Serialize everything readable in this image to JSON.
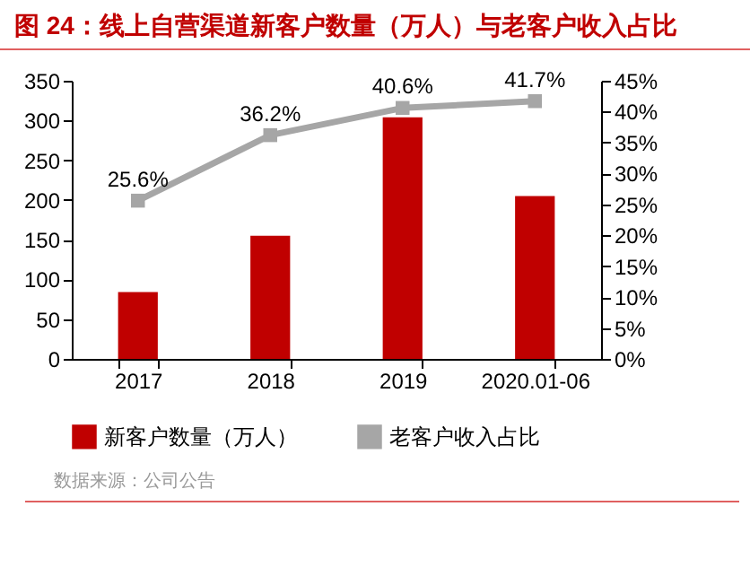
{
  "chart_data": {
    "type": "bar",
    "title": "图 24：线上自营渠道新客户数量（万人）与老客户收入占比",
    "categories": [
      "2017",
      "2018",
      "2019",
      "2020.01-06"
    ],
    "series": [
      {
        "name": "新客户数量（万人）",
        "color": "#c00000",
        "values": [
          84,
          155,
          304,
          205
        ]
      },
      {
        "name": "老客户收入占比",
        "type": "line",
        "axis": "y2",
        "color": "#a6a6a6",
        "marker": "square",
        "values": [
          25.6,
          36.2,
          40.6,
          41.7
        ],
        "value_labels": [
          "25.6%",
          "36.2%",
          "40.6%",
          "41.7%"
        ]
      }
    ],
    "ylim": [
      0,
      350
    ],
    "yticks": [
      0,
      50,
      100,
      150,
      200,
      250,
      300,
      350
    ],
    "y2lim": [
      0,
      45
    ],
    "y2ticks": [
      {
        "value": 0,
        "label": "0%"
      },
      {
        "value": 5,
        "label": "5%"
      },
      {
        "value": 10,
        "label": "10%"
      },
      {
        "value": 15,
        "label": "15%"
      },
      {
        "value": 20,
        "label": "20%"
      },
      {
        "value": 25,
        "label": "25%"
      },
      {
        "value": 30,
        "label": "30%"
      },
      {
        "value": 35,
        "label": "35%"
      },
      {
        "value": 40,
        "label": "40%"
      },
      {
        "value": 45,
        "label": "45%"
      }
    ],
    "grid": false,
    "legend": "bottom",
    "annotations": [
      "数据来源：公司公告"
    ]
  }
}
